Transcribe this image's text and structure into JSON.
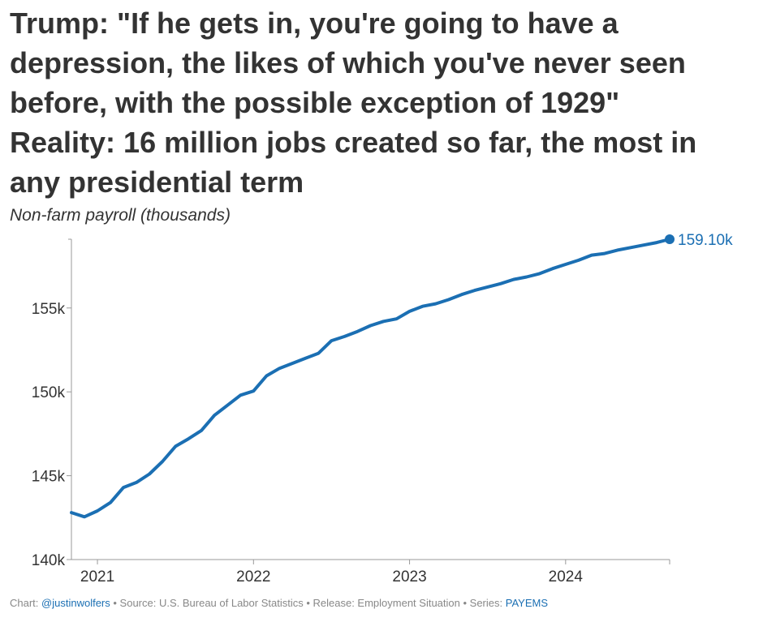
{
  "title_lines": [
    "Trump: \"If he gets in, you're going to have a",
    "depression, the likes of which you've never seen",
    "before, with the possible exception of 1929\"",
    "Reality: 16 million jobs created so far, the most in",
    "any presidential term"
  ],
  "subtitle": "Non-farm payroll (thousands)",
  "colors": {
    "line": "#1b6fb3",
    "text": "#333333",
    "axis": "#999999",
    "footer": "#888888"
  },
  "footer": {
    "chart_label": "Chart:",
    "chart_author": "@justinwolfers",
    "sep1": " • ",
    "source": "Source: U.S. Bureau of Labor Statistics",
    "sep2": " • ",
    "release": "Release: Employment Situation",
    "sep3": " • ",
    "series_label": "Series:",
    "series_id": "PAYEMS"
  },
  "chart_data": {
    "type": "line",
    "xlabel": "",
    "ylabel": "",
    "x_ticks": [
      "2021",
      "2022",
      "2023",
      "2024"
    ],
    "y_ticks": [
      "140k",
      "145k",
      "150k",
      "155k"
    ],
    "ylim": [
      140000,
      159100
    ],
    "grid": false,
    "end_label": "159.10k",
    "series": [
      {
        "x": [
          "2020-11",
          "2020-12",
          "2021-01",
          "2021-02",
          "2021-03",
          "2021-04",
          "2021-05",
          "2021-06",
          "2021-07",
          "2021-08",
          "2021-09",
          "2021-10",
          "2021-11",
          "2021-12",
          "2022-01",
          "2022-02",
          "2022-03",
          "2022-04",
          "2022-05",
          "2022-06",
          "2022-07",
          "2022-08",
          "2022-09",
          "2022-10",
          "2022-11",
          "2022-12",
          "2023-01",
          "2023-02",
          "2023-03",
          "2023-04",
          "2023-05",
          "2023-06",
          "2023-07",
          "2023-08",
          "2023-09",
          "2023-10",
          "2023-11",
          "2023-12",
          "2024-01",
          "2024-02",
          "2024-03",
          "2024-04",
          "2024-05",
          "2024-06",
          "2024-07",
          "2024-08",
          "2024-09"
        ],
        "values": [
          142800,
          142550,
          142900,
          143400,
          144300,
          144600,
          145100,
          145850,
          146750,
          147200,
          147700,
          148600,
          149200,
          149800,
          150050,
          150950,
          151400,
          151700,
          152000,
          152300,
          153050,
          153300,
          153600,
          153950,
          154200,
          154350,
          154800,
          155100,
          155250,
          155500,
          155800,
          156050,
          156250,
          156450,
          156700,
          156850,
          157050,
          157350,
          157600,
          157850,
          158150,
          158250,
          158450,
          158600,
          158750,
          158900,
          159100
        ]
      }
    ]
  }
}
